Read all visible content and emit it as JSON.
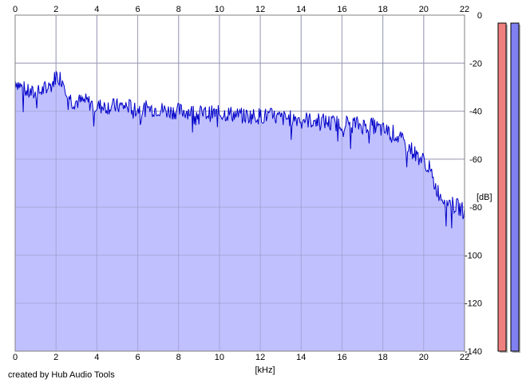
{
  "chart_data": {
    "type": "area",
    "title": "",
    "xlabel": "[kHz]",
    "ylabel": "[dB]",
    "xlim": [
      0,
      22
    ],
    "ylim": [
      -140,
      0
    ],
    "x_ticks": [
      "0",
      "2",
      "4",
      "6",
      "8",
      "10",
      "12",
      "14",
      "16",
      "18",
      "20",
      "22"
    ],
    "y_ticks": [
      "0",
      "-20",
      "-40",
      "-60",
      "-80",
      "-100",
      "-120",
      "-140"
    ],
    "grid": true,
    "series": [
      {
        "color": "#0000c8",
        "fill": "#c0c0ff",
        "x": [
          0,
          0.3,
          0.6,
          1.0,
          1.4,
          1.8,
          2.0,
          2.2,
          2.4,
          2.6,
          2.8,
          3.0,
          3.5,
          4.0,
          4.5,
          5.0,
          5.5,
          6.0,
          6.5,
          7.0,
          7.5,
          8.0,
          8.5,
          9.0,
          9.5,
          10.0,
          10.5,
          11.0,
          11.5,
          12.0,
          12.5,
          13.0,
          13.5,
          14.0,
          14.5,
          15.0,
          15.5,
          16.0,
          16.5,
          17.0,
          17.5,
          18.0,
          18.5,
          19.0,
          19.3,
          19.6,
          19.9,
          20.2,
          20.5,
          20.8,
          21.1,
          21.4,
          21.7,
          22.0
        ],
        "y": [
          -27,
          -30,
          -32,
          -33,
          -31,
          -29,
          -25,
          -26,
          -28,
          -33,
          -36,
          -36,
          -36,
          -38,
          -38,
          -38,
          -38,
          -39,
          -39,
          -39,
          -40,
          -40,
          -40,
          -41,
          -41,
          -41,
          -41,
          -42,
          -42,
          -42,
          -42,
          -43,
          -43,
          -43,
          -44,
          -44,
          -45,
          -45,
          -45,
          -46,
          -46,
          -48,
          -49,
          -53,
          -55,
          -58,
          -60,
          -62,
          -70,
          -75,
          -77,
          -79,
          -80,
          -82
        ]
      }
    ]
  },
  "meters": [
    {
      "level": 1.0,
      "color": "#f08080"
    },
    {
      "level": 1.0,
      "color": "#8080f0"
    }
  ],
  "credit": "created by Hub Audio Tools"
}
